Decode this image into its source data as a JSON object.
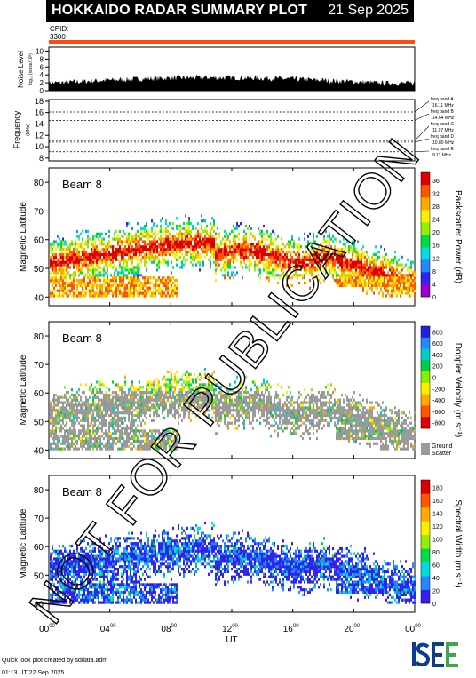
{
  "header": {
    "title": "HOKKAIDO RADAR SUMMARY PLOT",
    "date": "21 Sep 2025"
  },
  "cpid": {
    "label": "CPID:",
    "value": "3300"
  },
  "noise_panel": {
    "ylabel": "Noise Level",
    "yunit": "log₁₀ (noise/10³)",
    "ticks": [
      "0",
      "2",
      "4",
      "6",
      "8",
      "10"
    ]
  },
  "freq_panel": {
    "ylabel": "Frequency",
    "yunit": "(MHz)",
    "ticks": [
      "8",
      "10",
      "12",
      "14",
      "16",
      "18"
    ],
    "bands": [
      {
        "name": "freq band A",
        "freq": "16.11 MHz",
        "value": 16.11
      },
      {
        "name": "freq band B",
        "freq": "14.64 MHz",
        "value": 14.64
      },
      {
        "name": "freq band C",
        "freq": "11.07 MHz",
        "value": 11.07
      },
      {
        "name": "freq band D",
        "freq": "10.80 MHz",
        "value": 10.8
      },
      {
        "name": "freq band E",
        "freq": "9.11 MHz",
        "value": 9.11
      }
    ]
  },
  "chart_data": [
    {
      "type": "heatmap",
      "title": "Beam  8",
      "ylabel": "Magnetic Latitude",
      "ylim": [
        37,
        85
      ],
      "yticks": [
        "40",
        "50",
        "60",
        "70",
        "80"
      ],
      "colorbar_label": "Backscatter Power (dB)",
      "colorbar_ticks": [
        "0",
        "4",
        "8",
        "12",
        "16",
        "20",
        "24",
        "28",
        "32",
        "36"
      ],
      "colorbar_colors": [
        "#9900cc",
        "#3322ee",
        "#2288ff",
        "#00dddd",
        "#00dd44",
        "#99ee00",
        "#ffee00",
        "#ffaa00",
        "#ff5500",
        "#dd0000"
      ]
    },
    {
      "type": "heatmap",
      "title": "Beam  8",
      "ylabel": "Magnetic Latitude",
      "ylim": [
        37,
        85
      ],
      "yticks": [
        "40",
        "50",
        "60",
        "70",
        "80"
      ],
      "colorbar_label": "Doppler Velocity (m s⁻¹)",
      "colorbar_ticks": [
        "800",
        "600",
        "400",
        "200",
        "0",
        "-200",
        "-400",
        "-600",
        "-800"
      ],
      "colorbar_colors": [
        "#2222dd",
        "#2288ff",
        "#00cccc",
        "#00cc44",
        "#88ee00",
        "#ffee00",
        "#ffaa00",
        "#ff5500",
        "#dd0000"
      ],
      "ground_scatter_label": "Ground Scatter",
      "ground_scatter_color": "#9a9a9a"
    },
    {
      "type": "heatmap",
      "title": "Beam  8",
      "ylabel": "Magnetic Latitude",
      "ylim": [
        37,
        85
      ],
      "yticks": [
        "40",
        "50",
        "60",
        "70",
        "80"
      ],
      "colorbar_label": "Spectral Width (m s⁻¹)",
      "colorbar_ticks": [
        "0",
        "20",
        "40",
        "60",
        "80",
        "100",
        "120",
        "140",
        "160",
        "180"
      ],
      "colorbar_colors": [
        "#3322ee",
        "#2288ff",
        "#00dddd",
        "#00dd44",
        "#99ee00",
        "#ffee00",
        "#ffaa00",
        "#ff5500",
        "#dd0000"
      ]
    }
  ],
  "time_axis": {
    "xlabel": "UT",
    "ticks": [
      {
        "h": "00",
        "s": "00"
      },
      {
        "h": "04",
        "s": "00"
      },
      {
        "h": "08",
        "s": "00"
      },
      {
        "h": "12",
        "s": "00"
      },
      {
        "h": "16",
        "s": "00"
      },
      {
        "h": "20",
        "s": "00"
      },
      {
        "h": "00",
        "s": "00"
      }
    ]
  },
  "footer": {
    "line1": "Quick look plot created by sddata.adm",
    "line2": "01:13 UT 22 Sep 2025"
  },
  "logo": {
    "text": "ISEE",
    "color": "#0b3d8c",
    "accent": "#3aa74a"
  },
  "watermark": "NOT FOR PUBLICATION"
}
